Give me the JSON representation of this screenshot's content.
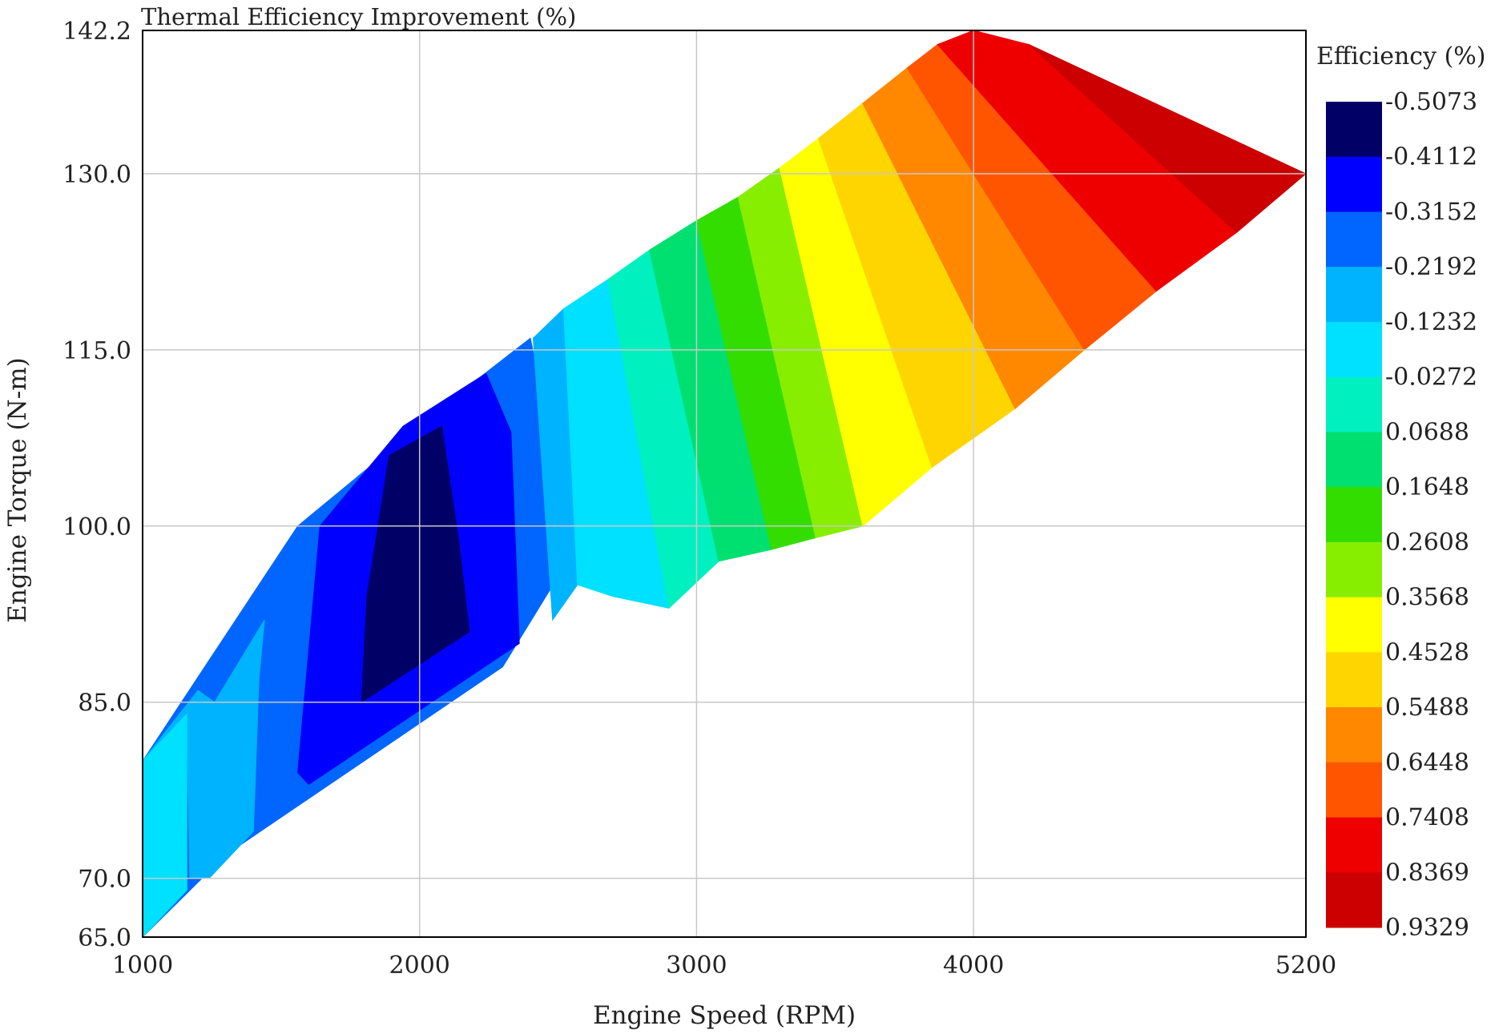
{
  "chart_data": {
    "type": "contour",
    "title": "Thermal Efficiency Improvement (%)",
    "xlabel": "Engine Speed (RPM)",
    "ylabel": "Engine Torque (N-m)",
    "xlim": [
      1000,
      5200
    ],
    "ylim": [
      65.0,
      142.2
    ],
    "x_ticks": [
      1000,
      2000,
      3000,
      4000,
      5200
    ],
    "x_tick_labels": [
      "1000",
      "2000",
      "3000",
      "4000",
      "5200"
    ],
    "y_ticks": [
      65.0,
      70.0,
      85.0,
      100.0,
      115.0,
      130.0,
      142.2
    ],
    "y_tick_labels": [
      "65.0",
      "70.0",
      "85.0",
      "100.0",
      "115.0",
      "130.0",
      "142.2"
    ],
    "grid": true,
    "domain_outline": [
      [
        1000,
        65.0
      ],
      [
        3600,
        100.0
      ],
      [
        5200,
        130.0
      ],
      [
        4000,
        142.2
      ],
      [
        2100,
        110.5
      ],
      [
        1000,
        80.0
      ]
    ],
    "colorbar": {
      "title": "Efficiency (%)",
      "levels": [
        -0.5073,
        -0.4112,
        -0.3152,
        -0.2192,
        -0.1232,
        -0.0272,
        0.0688,
        0.1648,
        0.2608,
        0.3568,
        0.4528,
        0.5488,
        0.6448,
        0.7408,
        0.8369,
        0.9329
      ],
      "level_labels": [
        "-0.5073",
        "-0.4112",
        "-0.3152",
        "-0.2192",
        "-0.1232",
        "-0.0272",
        "0.0688",
        "0.1648",
        "0.2608",
        "0.3568",
        "0.4528",
        "0.5488",
        "0.6448",
        "0.7408",
        "0.8369",
        "0.9329"
      ],
      "colors": [
        "#000066",
        "#0000ff",
        "#0066ff",
        "#00b3ff",
        "#00e0ff",
        "#00f0c0",
        "#00e070",
        "#33dd00",
        "#88ee00",
        "#ffff00",
        "#ffd500",
        "#ff8800",
        "#ff5500",
        "#ee0000",
        "#cc0000"
      ]
    },
    "bands": [
      {
        "level_index": 2,
        "polygon": [
          [
            1000,
            65.0
          ],
          [
            1000,
            80.0
          ],
          [
            1560,
            100.0
          ],
          [
            2100,
            110.5
          ],
          [
            2400,
            116.0
          ],
          [
            2560,
            98.0
          ],
          [
            2300,
            88.0
          ],
          [
            1300,
            72.0
          ]
        ]
      },
      {
        "level_index": 1,
        "polygon": [
          [
            1560,
            79.0
          ],
          [
            1640,
            100.0
          ],
          [
            1940,
            108.5
          ],
          [
            2240,
            113.0
          ],
          [
            2330,
            108.0
          ],
          [
            2360,
            90.0
          ],
          [
            1600,
            78.0
          ]
        ]
      },
      {
        "level_index": 0,
        "polygon": [
          [
            1790,
            85.0
          ],
          [
            1810,
            94.0
          ],
          [
            1890,
            106.0
          ],
          [
            2080,
            108.5
          ],
          [
            2140,
            99.0
          ],
          [
            2180,
            91.0
          ]
        ]
      },
      {
        "level_index": 3,
        "polygon": [
          [
            1000,
            65.0
          ],
          [
            1000,
            80.0
          ],
          [
            1160,
            84.0
          ],
          [
            1170,
            70.0
          ],
          [
            1240,
            70.0
          ],
          [
            1360,
            73.0
          ],
          [
            1400,
            74.0
          ],
          [
            1420,
            87.0
          ],
          [
            1440,
            92.0
          ],
          [
            1260,
            85.0
          ],
          [
            1200,
            86.0
          ],
          [
            1000,
            80.0
          ]
        ]
      },
      {
        "level_index": 4,
        "polygon": [
          [
            1000,
            65.0
          ],
          [
            1000,
            80.0
          ],
          [
            1160,
            84.0
          ],
          [
            1160,
            69.0
          ]
        ]
      },
      {
        "level_index": 3,
        "polygon": [
          [
            2410,
            116.0
          ],
          [
            2520,
            118.5
          ],
          [
            2570,
            95.0
          ],
          [
            2480,
            92.0
          ]
        ]
      },
      {
        "level_index": 4,
        "polygon": [
          [
            2520,
            118.5
          ],
          [
            2680,
            121.0
          ],
          [
            2900,
            93.0
          ],
          [
            2700,
            94.0
          ],
          [
            2570,
            95.0
          ]
        ]
      },
      {
        "level_index": 5,
        "polygon": [
          [
            2680,
            121.0
          ],
          [
            2830,
            123.5
          ],
          [
            3080,
            97.0
          ],
          [
            2900,
            93.0
          ]
        ]
      },
      {
        "level_index": 6,
        "polygon": [
          [
            2830,
            123.5
          ],
          [
            3000,
            126.0
          ],
          [
            3270,
            98.0
          ],
          [
            3080,
            97.0
          ]
        ]
      },
      {
        "level_index": 7,
        "polygon": [
          [
            3000,
            126.0
          ],
          [
            3150,
            128.0
          ],
          [
            3430,
            99.0
          ],
          [
            3270,
            98.0
          ]
        ]
      },
      {
        "level_index": 8,
        "polygon": [
          [
            3150,
            128.0
          ],
          [
            3300,
            130.5
          ],
          [
            3600,
            100.0
          ],
          [
            3430,
            99.0
          ]
        ]
      },
      {
        "level_index": 9,
        "polygon": [
          [
            3300,
            130.5
          ],
          [
            3440,
            133.0
          ],
          [
            3850,
            105.0
          ],
          [
            3600,
            100.0
          ]
        ]
      },
      {
        "level_index": 10,
        "polygon": [
          [
            3440,
            133.0
          ],
          [
            3600,
            136.0
          ],
          [
            4150,
            110.0
          ],
          [
            3850,
            105.0
          ]
        ]
      },
      {
        "level_index": 11,
        "polygon": [
          [
            3600,
            136.0
          ],
          [
            3760,
            139.0
          ],
          [
            4400,
            115.0
          ],
          [
            4150,
            110.0
          ]
        ]
      },
      {
        "level_index": 12,
        "polygon": [
          [
            3760,
            139.0
          ],
          [
            3870,
            141.0
          ],
          [
            4660,
            120.0
          ],
          [
            4400,
            115.0
          ]
        ]
      },
      {
        "level_index": 13,
        "polygon": [
          [
            3870,
            141.0
          ],
          [
            4000,
            142.2
          ],
          [
            4200,
            141.0
          ],
          [
            4950,
            125.0
          ],
          [
            4660,
            120.0
          ]
        ]
      },
      {
        "level_index": 14,
        "polygon": [
          [
            4200,
            141.0
          ],
          [
            5200,
            130.0
          ],
          [
            4950,
            125.0
          ]
        ]
      }
    ]
  }
}
